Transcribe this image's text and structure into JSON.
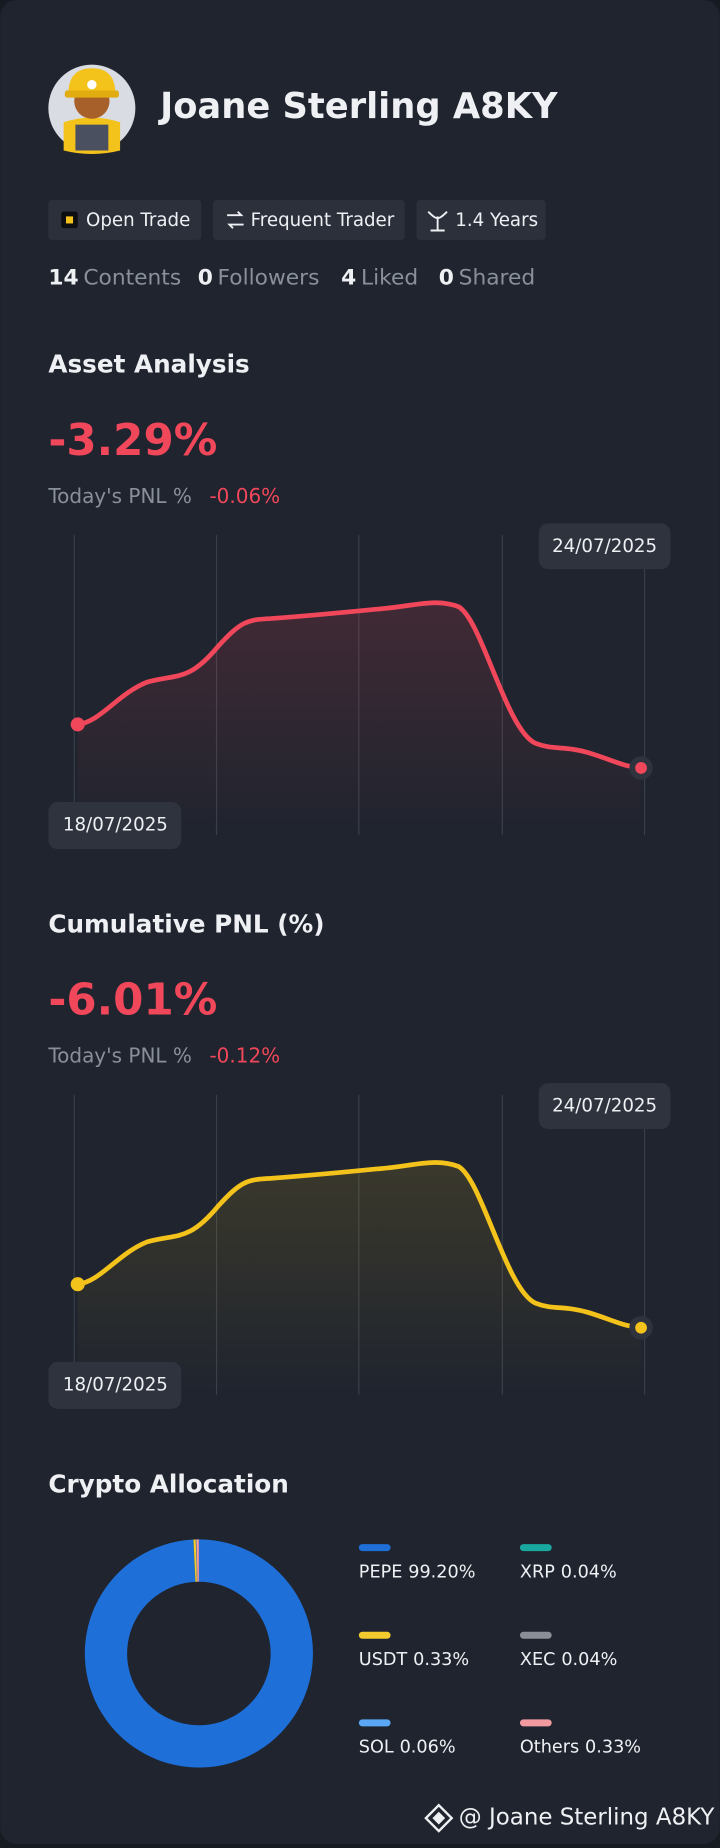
{
  "profile": {
    "name": "Joane Sterling A8KY",
    "tags": [
      "Open Trade",
      "Frequent Trader",
      "1.4 Years"
    ],
    "stats": [
      {
        "count": 14,
        "label": "Contents"
      },
      {
        "count": 0,
        "label": "Followers"
      },
      {
        "count": 4,
        "label": "Liked"
      },
      {
        "count": 0,
        "label": "Shared"
      }
    ]
  },
  "asset_analysis": {
    "title": "Asset Analysis",
    "value": "-3.29%",
    "today_label": "Today's PNL %",
    "today_value": "-0.06%",
    "start_date": "18/07/2025",
    "end_date": "24/07/2025"
  },
  "cumulative_pnl": {
    "title": "Cumulative PNL (%)",
    "value": "-6.01%",
    "today_label": "Today's PNL %",
    "today_value": "-0.12%",
    "start_date": "18/07/2025",
    "end_date": "24/07/2025"
  },
  "chart_data": {
    "type": "pie",
    "title": "Crypto Allocation",
    "categories": [
      "PEPE",
      "XRP",
      "USDT",
      "XEC",
      "SOL",
      "Others"
    ],
    "values": [
      99.2,
      0.04,
      0.33,
      0.04,
      0.06,
      0.33
    ],
    "value_labels": [
      "99.20%",
      "0.04%",
      "0.33%",
      "0.04%",
      "0.06%",
      "0.33%"
    ],
    "colors": [
      "#1f6fd8",
      "#19a8a0",
      "#f3cb2f",
      "#8a8e96",
      "#5aa8f5",
      "#f39aa1"
    ],
    "donut": true
  },
  "footer": {
    "handle": "@ Joane Sterling A8KY"
  }
}
